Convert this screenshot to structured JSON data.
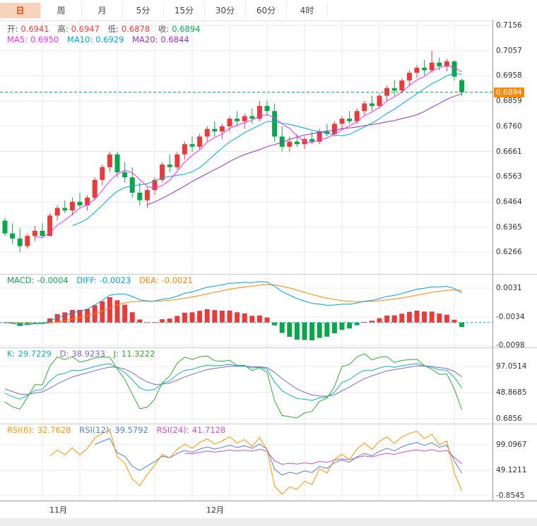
{
  "toolbar": {
    "tabs": [
      {
        "label": "日",
        "active": true
      },
      {
        "label": "周",
        "active": false
      },
      {
        "label": "月",
        "active": false
      },
      {
        "label": "5分",
        "active": false
      },
      {
        "label": "15分",
        "active": false
      },
      {
        "label": "30分",
        "active": false
      },
      {
        "label": "60分",
        "active": false
      },
      {
        "label": "4时",
        "active": false
      }
    ]
  },
  "main": {
    "legend_ohlc": [
      {
        "label": "开:",
        "value": "0.6941",
        "color": "up"
      },
      {
        "label": "高:",
        "value": "0.6947",
        "color": "up"
      },
      {
        "label": "低:",
        "value": "0.6878",
        "color": "up"
      },
      {
        "label": "收:",
        "value": "0.6894",
        "color": "down"
      }
    ],
    "legend_ma": [
      {
        "label": "MA5:",
        "value": "0.6950",
        "color": "ma5"
      },
      {
        "label": "MA10:",
        "value": "0.6929",
        "color": "ma10"
      },
      {
        "label": "MA20:",
        "value": "0.6844",
        "color": "ma20"
      }
    ],
    "y_axis": [
      "0.7156",
      "0.7057",
      "0.6958",
      "0.6859",
      "0.6760",
      "0.6661",
      "0.6563",
      "0.6464",
      "0.6365",
      "0.6266"
    ],
    "price_marker": "0.6894"
  },
  "macd": {
    "legend": [
      {
        "label": "MACD:",
        "value": "-0.0004",
        "color": "macd"
      },
      {
        "label": "DIFF:",
        "value": "-0.0023",
        "color": "diff"
      },
      {
        "label": "DEA:",
        "value": "-0.0021",
        "color": "dea"
      }
    ],
    "y_axis": [
      "0.0031",
      "-0.0034",
      "-0.0098"
    ]
  },
  "kdj": {
    "legend": [
      {
        "label": "K:",
        "value": "29.7229",
        "color": "k"
      },
      {
        "label": "D:",
        "value": "38.9233",
        "color": "d"
      },
      {
        "label": "J:",
        "value": "11.3222",
        "color": "j"
      }
    ],
    "y_axis": [
      "97.0514",
      "48.8685",
      "0.6856"
    ]
  },
  "rsi": {
    "legend": [
      {
        "label": "RSI(6):",
        "value": "32.7628",
        "color": "rsi6"
      },
      {
        "label": "RSI(12):",
        "value": "39.5792",
        "color": "rsi12"
      },
      {
        "label": "RSI(24):",
        "value": "41.7128",
        "color": "rsi24"
      }
    ],
    "y_axis": [
      "99.0967",
      "49.1211",
      "-0.8545"
    ]
  },
  "x_axis": {
    "labels": [
      "11月",
      "12月"
    ]
  },
  "colors": {
    "up": "#e83b3b",
    "down": "#0aa64c",
    "ma5": "#f531f5",
    "ma10": "#00a8d8",
    "ma20": "#9a30b8",
    "macd": "#0aa64c",
    "diff": "#00a0e0",
    "dea": "#ff8800",
    "k": "#18b0b0",
    "d": "#7a6ad0",
    "j": "#35a835",
    "rsi6": "#ff9500",
    "rsi12": "#5580c8",
    "rsi24": "#cc50cc",
    "price_line": "#0aa64c",
    "price_badge_bg": "#ff8800",
    "active_tab": "#e8450a",
    "active_tab_bg": "#f8d3bb"
  },
  "chart_data": {
    "type": "candlestick",
    "panels": [
      "price+MA(5,10,20)",
      "MACD(12,26,9)",
      "KDJ(9,3,3)",
      "RSI(6,12,24)"
    ],
    "x_axis_labels": [
      "11月",
      "12月"
    ],
    "price_axis_range": [
      0.6266,
      0.7156
    ],
    "last_close": 0.6894,
    "ohlc_display": {
      "open": 0.6941,
      "high": 0.6947,
      "low": 0.6878,
      "close": 0.6894
    },
    "candles": [
      [
        0.639,
        0.64,
        0.633,
        0.634
      ],
      [
        0.634,
        0.638,
        0.63,
        0.632
      ],
      [
        0.632,
        0.636,
        0.6266,
        0.629
      ],
      [
        0.629,
        0.634,
        0.628,
        0.633
      ],
      [
        0.633,
        0.637,
        0.631,
        0.635
      ],
      [
        0.635,
        0.638,
        0.632,
        0.633
      ],
      [
        0.633,
        0.642,
        0.633,
        0.641
      ],
      [
        0.641,
        0.645,
        0.639,
        0.644
      ],
      [
        0.644,
        0.647,
        0.642,
        0.643
      ],
      [
        0.643,
        0.648,
        0.641,
        0.6464
      ],
      [
        0.6464,
        0.65,
        0.644,
        0.645
      ],
      [
        0.645,
        0.649,
        0.643,
        0.648
      ],
      [
        0.648,
        0.656,
        0.647,
        0.655
      ],
      [
        0.655,
        0.661,
        0.653,
        0.66
      ],
      [
        0.66,
        0.6661,
        0.658,
        0.665
      ],
      [
        0.665,
        0.666,
        0.656,
        0.658
      ],
      [
        0.658,
        0.662,
        0.654,
        0.656
      ],
      [
        0.656,
        0.66,
        0.648,
        0.65
      ],
      [
        0.65,
        0.654,
        0.645,
        0.647
      ],
      [
        0.647,
        0.652,
        0.644,
        0.651
      ],
      [
        0.651,
        0.656,
        0.649,
        0.655
      ],
      [
        0.655,
        0.662,
        0.654,
        0.661
      ],
      [
        0.661,
        0.665,
        0.658,
        0.66
      ],
      [
        0.66,
        0.666,
        0.659,
        0.665
      ],
      [
        0.665,
        0.67,
        0.663,
        0.669
      ],
      [
        0.669,
        0.672,
        0.666,
        0.668
      ],
      [
        0.668,
        0.673,
        0.667,
        0.672
      ],
      [
        0.672,
        0.676,
        0.67,
        0.675
      ],
      [
        0.675,
        0.678,
        0.672,
        0.674
      ],
      [
        0.674,
        0.677,
        0.671,
        0.676
      ],
      [
        0.676,
        0.68,
        0.674,
        0.679
      ],
      [
        0.679,
        0.682,
        0.676,
        0.678
      ],
      [
        0.678,
        0.681,
        0.675,
        0.68
      ],
      [
        0.68,
        0.683,
        0.677,
        0.679
      ],
      [
        0.679,
        0.6859,
        0.678,
        0.684
      ],
      [
        0.684,
        0.686,
        0.68,
        0.682
      ],
      [
        0.682,
        0.685,
        0.67,
        0.672
      ],
      [
        0.672,
        0.676,
        0.6661,
        0.668
      ],
      [
        0.668,
        0.672,
        0.666,
        0.67
      ],
      [
        0.67,
        0.673,
        0.668,
        0.669
      ],
      [
        0.669,
        0.672,
        0.667,
        0.671
      ],
      [
        0.671,
        0.674,
        0.669,
        0.67
      ],
      [
        0.67,
        0.675,
        0.669,
        0.674
      ],
      [
        0.674,
        0.677,
        0.672,
        0.673
      ],
      [
        0.673,
        0.678,
        0.672,
        0.677
      ],
      [
        0.677,
        0.68,
        0.675,
        0.679
      ],
      [
        0.679,
        0.682,
        0.677,
        0.678
      ],
      [
        0.678,
        0.683,
        0.677,
        0.682
      ],
      [
        0.682,
        0.686,
        0.68,
        0.685
      ],
      [
        0.685,
        0.688,
        0.682,
        0.684
      ],
      [
        0.684,
        0.689,
        0.683,
        0.688
      ],
      [
        0.688,
        0.692,
        0.686,
        0.691
      ],
      [
        0.691,
        0.694,
        0.688,
        0.69
      ],
      [
        0.69,
        0.695,
        0.689,
        0.694
      ],
      [
        0.694,
        0.698,
        0.692,
        0.697
      ],
      [
        0.697,
        0.7,
        0.695,
        0.699
      ],
      [
        0.699,
        0.702,
        0.696,
        0.698
      ],
      [
        0.698,
        0.7057,
        0.697,
        0.701
      ],
      [
        0.701,
        0.703,
        0.698,
        0.6995
      ],
      [
        0.6995,
        0.7025,
        0.6975,
        0.7015
      ],
      [
        0.7015,
        0.702,
        0.694,
        0.6955
      ],
      [
        0.6941,
        0.6947,
        0.6878,
        0.6894
      ]
    ]
  }
}
